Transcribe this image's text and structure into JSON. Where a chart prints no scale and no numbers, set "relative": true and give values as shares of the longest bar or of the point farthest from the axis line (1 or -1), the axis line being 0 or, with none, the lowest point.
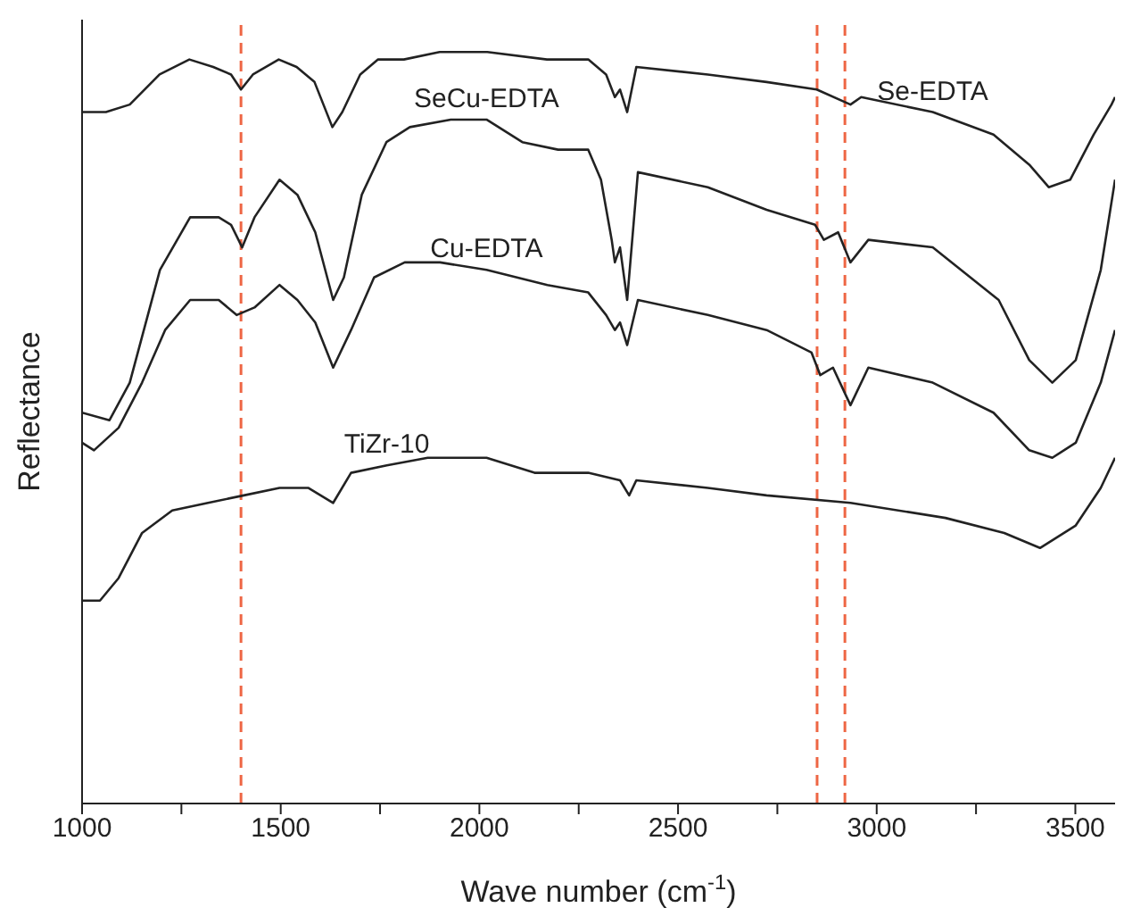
{
  "chart_data": {
    "type": "line",
    "xlabel": "Wave number (cm$^{-1}$)",
    "ylabel": "Reflectance",
    "relative": true,
    "xlim": [
      1000,
      3600
    ],
    "xticks": [
      1000,
      {
        "value": 1250,
        "label": null
      },
      1500,
      {
        "value": 1750,
        "label": null
      },
      2000,
      {
        "value": 2250,
        "label": null
      },
      2500,
      {
        "value": 2750,
        "label": null
      },
      3000,
      {
        "value": 3250,
        "label": null
      },
      3500
    ],
    "legend": false,
    "grid": false,
    "marker": "none",
    "line_style": "solid",
    "series": [
      {
        "name": "Se-EDTA",
        "color": "#222222",
        "x": [
          1000,
          1060,
          1120,
          1195,
          1270,
          1330,
          1375,
          1400,
          1430,
          1495,
          1540,
          1585,
          1630,
          1655,
          1700,
          1745,
          1810,
          1900,
          2020,
          2170,
          2274,
          2319,
          2341,
          2354,
          2372,
          2395,
          2575,
          2723,
          2849,
          2934,
          2961,
          3141,
          3294,
          3384,
          3433,
          3487,
          3546,
          3591,
          3600
        ],
        "values": [
          0.92,
          0.92,
          0.93,
          0.97,
          0.99,
          0.98,
          0.97,
          0.95,
          0.97,
          0.99,
          0.98,
          0.96,
          0.9,
          0.92,
          0.97,
          0.99,
          0.99,
          1.0,
          1.0,
          0.99,
          0.99,
          0.97,
          0.94,
          0.95,
          0.92,
          0.98,
          0.97,
          0.96,
          0.95,
          0.93,
          0.94,
          0.92,
          0.89,
          0.85,
          0.82,
          0.83,
          0.89,
          0.93,
          0.94
        ]
      },
      {
        "name": "SeCu-EDTA",
        "color": "#222222",
        "x": [
          1000,
          1069,
          1120,
          1196,
          1272,
          1344,
          1375,
          1403,
          1434,
          1497,
          1542,
          1587,
          1632,
          1659,
          1704,
          1766,
          1825,
          1928,
          2018,
          2108,
          2198,
          2274,
          2306,
          2333,
          2341,
          2354,
          2372,
          2399,
          2575,
          2723,
          2845,
          2867,
          2903,
          2934,
          2979,
          3141,
          3307,
          3384,
          3442,
          3501,
          3564,
          3600
        ],
        "values": [
          0.52,
          0.51,
          0.56,
          0.71,
          0.78,
          0.78,
          0.77,
          0.74,
          0.78,
          0.83,
          0.81,
          0.76,
          0.67,
          0.7,
          0.81,
          0.88,
          0.9,
          0.91,
          0.91,
          0.88,
          0.87,
          0.87,
          0.83,
          0.75,
          0.72,
          0.74,
          0.67,
          0.84,
          0.82,
          0.79,
          0.77,
          0.75,
          0.76,
          0.72,
          0.75,
          0.74,
          0.67,
          0.59,
          0.56,
          0.59,
          0.71,
          0.83
        ]
      },
      {
        "name": "Cu-EDTA",
        "color": "#222222",
        "x": [
          1000,
          1030,
          1092,
          1151,
          1209,
          1272,
          1344,
          1389,
          1434,
          1497,
          1542,
          1587,
          1632,
          1677,
          1735,
          1812,
          1901,
          2018,
          2171,
          2274,
          2319,
          2341,
          2354,
          2372,
          2399,
          2575,
          2723,
          2836,
          2858,
          2890,
          2934,
          2979,
          3141,
          3294,
          3384,
          3442,
          3501,
          3564,
          3600
        ],
        "values": [
          0.48,
          0.47,
          0.5,
          0.56,
          0.63,
          0.67,
          0.67,
          0.65,
          0.66,
          0.69,
          0.67,
          0.64,
          0.58,
          0.63,
          0.7,
          0.72,
          0.72,
          0.71,
          0.69,
          0.68,
          0.65,
          0.63,
          0.64,
          0.61,
          0.67,
          0.65,
          0.63,
          0.6,
          0.57,
          0.58,
          0.53,
          0.58,
          0.56,
          0.52,
          0.47,
          0.46,
          0.48,
          0.56,
          0.63
        ]
      },
      {
        "name": "TiZr-10",
        "color": "#222222",
        "x": [
          1000,
          1045,
          1092,
          1151,
          1227,
          1317,
          1407,
          1497,
          1569,
          1632,
          1677,
          1767,
          1870,
          2018,
          2139,
          2274,
          2354,
          2377,
          2395,
          2575,
          2723,
          2934,
          3173,
          3321,
          3411,
          3501,
          3564,
          3600
        ],
        "values": [
          0.27,
          0.27,
          0.3,
          0.36,
          0.39,
          0.4,
          0.41,
          0.42,
          0.42,
          0.4,
          0.44,
          0.45,
          0.46,
          0.46,
          0.44,
          0.44,
          0.43,
          0.41,
          0.43,
          0.42,
          0.41,
          0.4,
          0.38,
          0.36,
          0.34,
          0.37,
          0.42,
          0.46
        ]
      }
    ],
    "ref_lines": [
      {
        "axis": "x",
        "value": 1400,
        "color": "#ee6644",
        "line_style": "dashed"
      },
      {
        "axis": "x",
        "value": 2850,
        "color": "#ee6644",
        "line_style": "dashed"
      },
      {
        "axis": "x",
        "value": 2920,
        "color": "#ee6644",
        "line_style": "dashed"
      }
    ]
  }
}
